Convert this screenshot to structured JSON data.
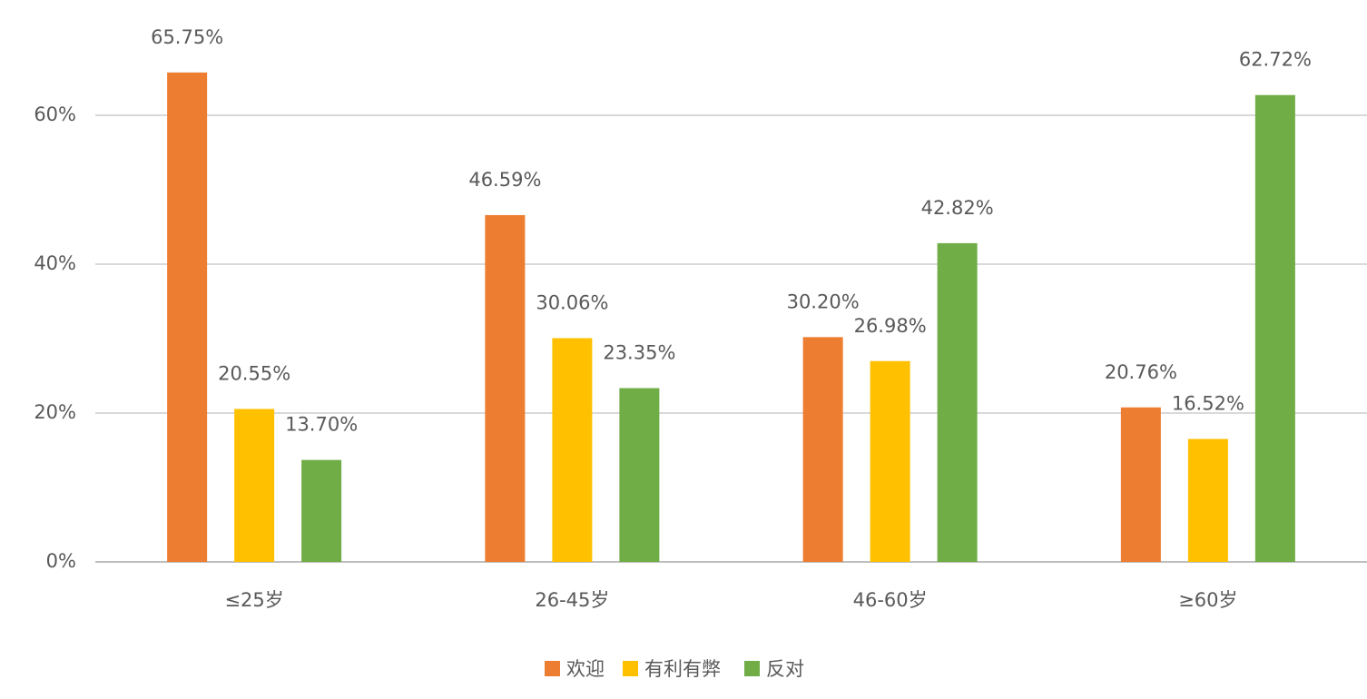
{
  "chart_data": {
    "type": "bar",
    "categories": [
      "≤25岁",
      "26-45岁",
      "46-60岁",
      "≥60岁"
    ],
    "series": [
      {
        "name": "欢迎",
        "color": "#ED7D31",
        "values": [
          65.75,
          46.59,
          30.2,
          20.76
        ],
        "value_labels": [
          "65.75%",
          "46.59%",
          "30.20%",
          "20.76%"
        ]
      },
      {
        "name": "有利有弊",
        "color": "#FFC000",
        "values": [
          20.55,
          30.06,
          26.98,
          16.52
        ],
        "value_labels": [
          "20.55%",
          "30.06%",
          "26.98%",
          "16.52%"
        ]
      },
      {
        "name": "反对",
        "color": "#70AD47",
        "values": [
          13.7,
          23.35,
          42.82,
          62.72
        ],
        "value_labels": [
          "13.70%",
          "23.35%",
          "42.82%",
          "62.72%"
        ]
      }
    ],
    "ylim": [
      0,
      70
    ],
    "yticks": [
      {
        "value": 0,
        "label": "0%"
      },
      {
        "value": 20,
        "label": "20%"
      },
      {
        "value": 40,
        "label": "40%"
      },
      {
        "value": 60,
        "label": "60%"
      }
    ],
    "grid": true,
    "legend": "bottom"
  }
}
